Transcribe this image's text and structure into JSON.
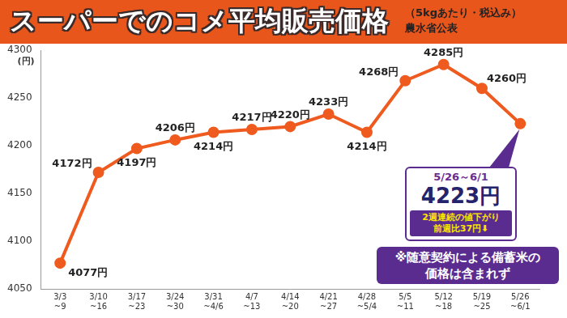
{
  "chart_data": {
    "type": "line",
    "title": "スーパーでのコメ平均販売価格",
    "subtitle": [
      "（5kgあたり・税込み）",
      "農水省公表"
    ],
    "ylabel": "(円)",
    "categories": [
      "3/3~9",
      "3/10~16",
      "3/17~23",
      "3/24~30",
      "3/31~4/6",
      "4/7~13",
      "4/14~20",
      "4/21~27",
      "4/28~5/4",
      "5/5~11",
      "5/12~18",
      "5/19~25",
      "5/26~6/1"
    ],
    "values": [
      4077,
      4172,
      4197,
      4206,
      4214,
      4217,
      4220,
      4233,
      4214,
      4268,
      4285,
      4260,
      4223
    ],
    "value_labels": [
      "4077円",
      "4172円",
      "4197円",
      "4206円",
      "4214円",
      "4217円",
      "4220円",
      "4233円",
      "4214円",
      "4268円",
      "4285円",
      "4260円",
      "4223円"
    ],
    "color": "#ef5a1e",
    "marker": "circle",
    "ylim": [
      4050,
      4300
    ],
    "yticks": [
      4050,
      4100,
      4150,
      4200,
      4250,
      4300
    ],
    "grid": false,
    "data_labels": true,
    "callout": {
      "title": "5/26～6/1",
      "lines": [
        "2週連続の値下がり",
        "前週比37円⬇"
      ]
    },
    "note": [
      "※随意契約による備蓄米の",
      "価格は含まれず"
    ]
  }
}
